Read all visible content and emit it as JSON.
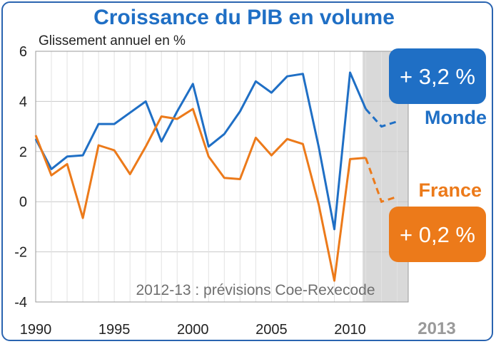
{
  "chart_data": {
    "type": "line",
    "title": "Croissance du PIB en volume",
    "ylabel": "Glissement annuel en %",
    "ylim": [
      -4,
      6
    ],
    "yticks": [
      -4,
      -2,
      0,
      2,
      4,
      6
    ],
    "xlim": [
      1990,
      2013
    ],
    "xtick_labels": [
      "1990",
      "1995",
      "2000",
      "2005",
      "2010"
    ],
    "xtick_extra_label": "2013",
    "grid": true,
    "forecast_years": [
      2011,
      2012,
      2013
    ],
    "forecast_note": "2012-13 : prévisions Coe-Rexecode",
    "x": [
      1990,
      1991,
      1992,
      1993,
      1994,
      1995,
      1996,
      1997,
      1998,
      1999,
      2000,
      2001,
      2002,
      2003,
      2004,
      2005,
      2006,
      2007,
      2008,
      2009,
      2010,
      2011,
      2012,
      2013
    ],
    "series": [
      {
        "name": "Monde",
        "color": "#1f6fc5",
        "values": [
          2.5,
          1.3,
          1.8,
          1.85,
          3.1,
          3.1,
          3.55,
          4.0,
          2.4,
          3.6,
          4.7,
          2.2,
          2.7,
          3.6,
          4.8,
          4.35,
          5.0,
          5.1,
          2.2,
          -1.1,
          5.15,
          3.7,
          3.0,
          3.2
        ],
        "badge": "+ 3,2 %",
        "badge_color": "#1f6fc5"
      },
      {
        "name": "France",
        "color": "#ec7a1a",
        "values": [
          2.65,
          1.05,
          1.5,
          -0.65,
          2.25,
          2.05,
          1.1,
          2.2,
          3.4,
          3.3,
          3.7,
          1.8,
          0.95,
          0.9,
          2.55,
          1.85,
          2.5,
          2.3,
          -0.1,
          -3.15,
          1.7,
          1.75,
          0.0,
          0.2
        ],
        "badge": "+ 0,2 %",
        "badge_color": "#ec7a1a"
      }
    ]
  }
}
